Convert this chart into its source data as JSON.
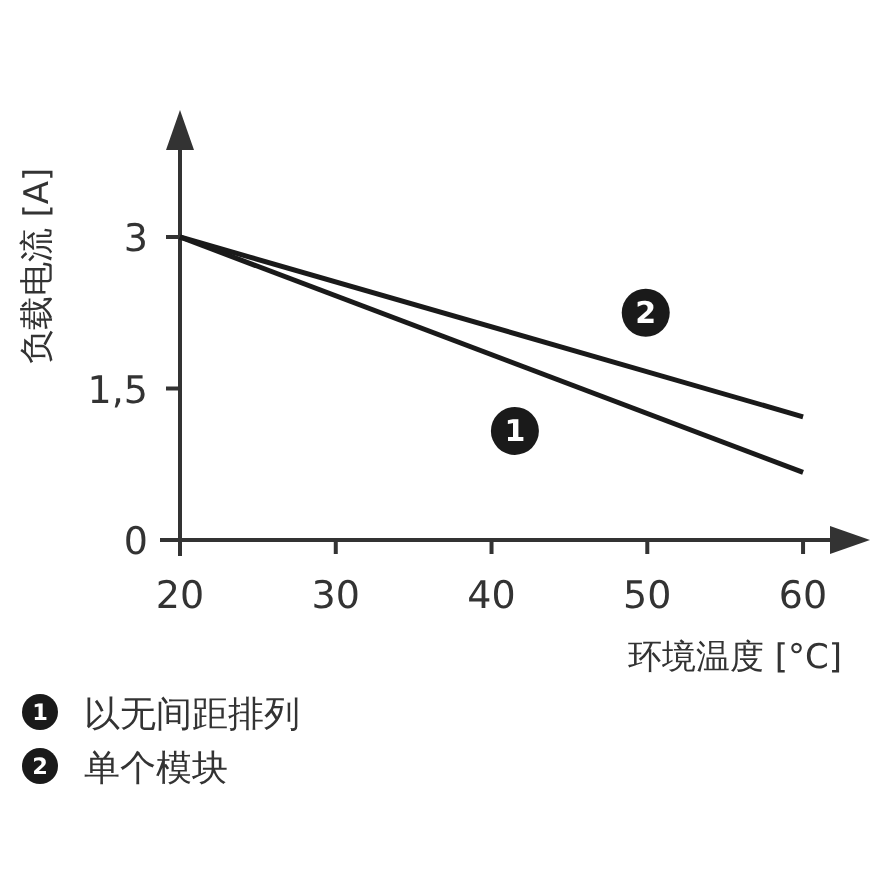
{
  "chart_data": {
    "type": "line",
    "xlabel": "环境温度 [°C]",
    "ylabel": "负载电流 [A]",
    "x": [
      20,
      60
    ],
    "series": [
      {
        "name": "以无间距排列",
        "color": "#1a1a1a",
        "values": [
          3,
          0.67
        ]
      },
      {
        "name": "单个模块",
        "color": "#1a1a1a",
        "values": [
          3,
          1.22
        ]
      }
    ],
    "annotations": [
      {
        "text": "1",
        "x": 41.5,
        "y": 1.08
      },
      {
        "text": "2",
        "x": 49.9,
        "y": 2.25
      }
    ],
    "xlim": [
      20,
      62.5
    ],
    "ylim": [
      0,
      4
    ],
    "xticks": [
      20,
      30,
      40,
      50,
      60
    ],
    "yticks": [
      0,
      {
        "value": 1.5,
        "label": "1,5"
      },
      3
    ],
    "grid": false,
    "legend": "bottom"
  }
}
